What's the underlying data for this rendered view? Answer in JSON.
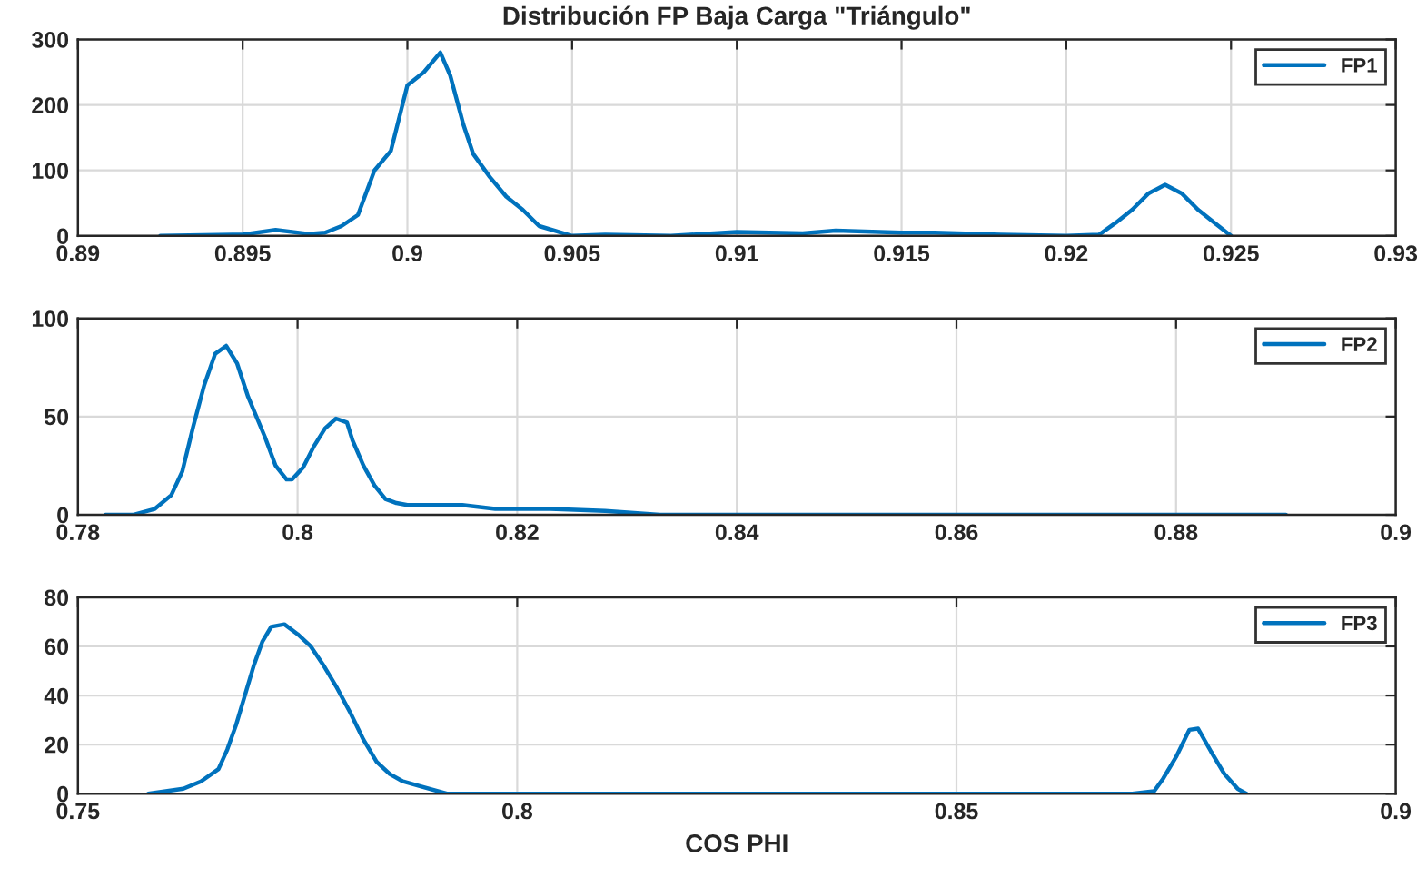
{
  "chart_data": [
    {
      "type": "line",
      "title": "Distribución FP Baja Carga \"Triángulo\"",
      "xlim": [
        0.89,
        0.93
      ],
      "xticks": [
        0.89,
        0.895,
        0.9,
        0.905,
        0.91,
        0.915,
        0.92,
        0.925,
        0.93
      ],
      "ylim": [
        0,
        300
      ],
      "yticks": [
        0,
        100,
        200,
        300
      ],
      "grid": true,
      "legend": "top right",
      "series": [
        {
          "name": "FP1",
          "color": "#0072bd",
          "x": [
            0.8925,
            0.895,
            0.896,
            0.897,
            0.8975,
            0.898,
            0.8985,
            0.899,
            0.8995,
            0.9,
            0.9005,
            0.901,
            0.9013,
            0.9017,
            0.902,
            0.9025,
            0.903,
            0.9035,
            0.904,
            0.905,
            0.906,
            0.908,
            0.91,
            0.912,
            0.913,
            0.915,
            0.916,
            0.918,
            0.92,
            0.921,
            0.9215,
            0.922,
            0.9225,
            0.923,
            0.9235,
            0.924,
            0.9245,
            0.925
          ],
          "values": [
            0,
            2,
            9,
            3,
            5,
            15,
            32,
            100,
            130,
            230,
            250,
            280,
            245,
            170,
            125,
            90,
            60,
            40,
            15,
            0,
            2,
            0,
            6,
            4,
            8,
            5,
            5,
            2,
            0,
            2,
            20,
            40,
            65,
            78,
            65,
            40,
            20,
            0
          ]
        }
      ]
    },
    {
      "type": "line",
      "xlim": [
        0.78,
        0.9
      ],
      "xticks": [
        0.78,
        0.8,
        0.82,
        0.84,
        0.86,
        0.88,
        0.9
      ],
      "ylim": [
        0,
        100
      ],
      "yticks": [
        0,
        50,
        100
      ],
      "grid": true,
      "legend": "top right",
      "series": [
        {
          "name": "FP2",
          "color": "#0072bd",
          "x": [
            0.7825,
            0.785,
            0.787,
            0.7885,
            0.7895,
            0.7905,
            0.7915,
            0.7925,
            0.7935,
            0.7945,
            0.7955,
            0.797,
            0.798,
            0.799,
            0.7995,
            0.8005,
            0.8015,
            0.8025,
            0.8035,
            0.8045,
            0.805,
            0.806,
            0.807,
            0.808,
            0.809,
            0.81,
            0.812,
            0.815,
            0.818,
            0.823,
            0.828,
            0.833,
            0.86,
            0.89
          ],
          "values": [
            0,
            0,
            3,
            10,
            22,
            45,
            66,
            82,
            86,
            77,
            60,
            40,
            25,
            18,
            18,
            24,
            35,
            44,
            49,
            47,
            38,
            25,
            15,
            8,
            6,
            5,
            5,
            5,
            3,
            3,
            2,
            0,
            0,
            0
          ]
        }
      ]
    },
    {
      "type": "line",
      "xlabel": "COS PHI",
      "xlim": [
        0.75,
        0.9
      ],
      "xticks": [
        0.75,
        0.8,
        0.85,
        0.9
      ],
      "ylim": [
        0,
        80
      ],
      "yticks": [
        0,
        20,
        40,
        60,
        80
      ],
      "grid": true,
      "legend": "top right",
      "series": [
        {
          "name": "FP3",
          "color": "#0072bd",
          "x": [
            0.758,
            0.762,
            0.764,
            0.766,
            0.767,
            0.768,
            0.769,
            0.77,
            0.771,
            0.772,
            0.7735,
            0.775,
            0.7765,
            0.778,
            0.7795,
            0.781,
            0.7825,
            0.784,
            0.7855,
            0.787,
            0.789,
            0.792,
            0.87,
            0.8725,
            0.8735,
            0.875,
            0.8765,
            0.8775,
            0.879,
            0.8805,
            0.882,
            0.883
          ],
          "values": [
            0,
            2,
            5,
            10,
            18,
            28,
            40,
            52,
            62,
            68,
            69,
            65,
            60,
            52,
            43,
            33,
            22,
            13,
            8,
            5,
            3,
            0,
            0,
            1,
            6,
            15,
            26,
            26.5,
            17,
            8,
            2,
            0
          ]
        }
      ]
    }
  ]
}
